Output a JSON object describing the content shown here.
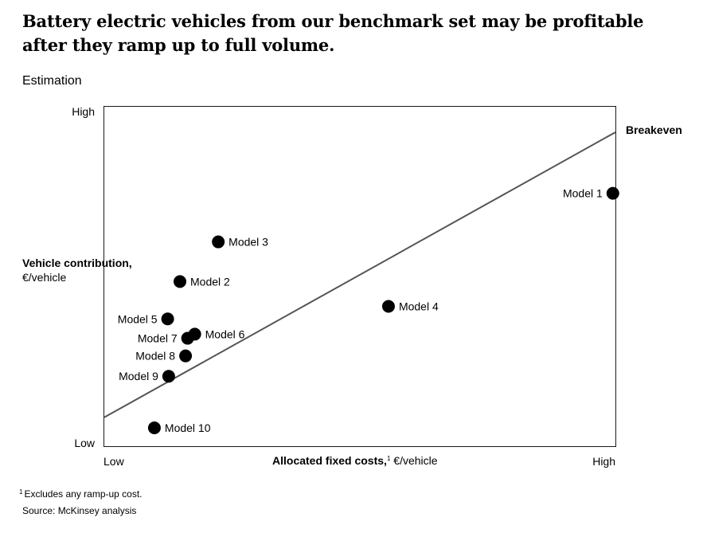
{
  "title": "Battery electric vehicles from our benchmark set may be profitable after they ramp up to full volume.",
  "subtitle": "Estimation",
  "footnote": {
    "marker": "1",
    "text": "Excludes any ramp-up cost."
  },
  "source": "Source: McKinsey analysis",
  "chart_data": {
    "type": "scatter",
    "xlabel_bold": "Allocated fixed costs,",
    "xlabel_sup": "1",
    "xlabel_unit": " €/vehicle",
    "ylabel_bold": "Vehicle contribution,",
    "ylabel_unit": "€/vehicle",
    "x_ticks": [
      "Low",
      "High"
    ],
    "y_ticks": [
      "Low",
      "High"
    ],
    "xlim": [
      0,
      100
    ],
    "ylim": [
      0,
      100
    ],
    "grid": false,
    "breakeven_label": "Breakeven",
    "breakeven_line": [
      [
        0,
        8.5
      ],
      [
        100,
        92.5
      ]
    ],
    "points": [
      {
        "label": "Model 1",
        "x": 99.5,
        "y": 74.5
      },
      {
        "label": "Model 2",
        "x": 14.8,
        "y": 48.5
      },
      {
        "label": "Model 3",
        "x": 22.3,
        "y": 60.2
      },
      {
        "label": "Model 4",
        "x": 55.6,
        "y": 41.2
      },
      {
        "label": "Model 5",
        "x": 12.4,
        "y": 37.5
      },
      {
        "label": "Model 6",
        "x": 17.7,
        "y": 33.0
      },
      {
        "label": "Model 7",
        "x": 16.3,
        "y": 31.8
      },
      {
        "label": "Model 8",
        "x": 15.9,
        "y": 26.6
      },
      {
        "label": "Model 9",
        "x": 12.6,
        "y": 20.6
      },
      {
        "label": "Model 10",
        "x": 9.8,
        "y": 5.4
      }
    ]
  }
}
